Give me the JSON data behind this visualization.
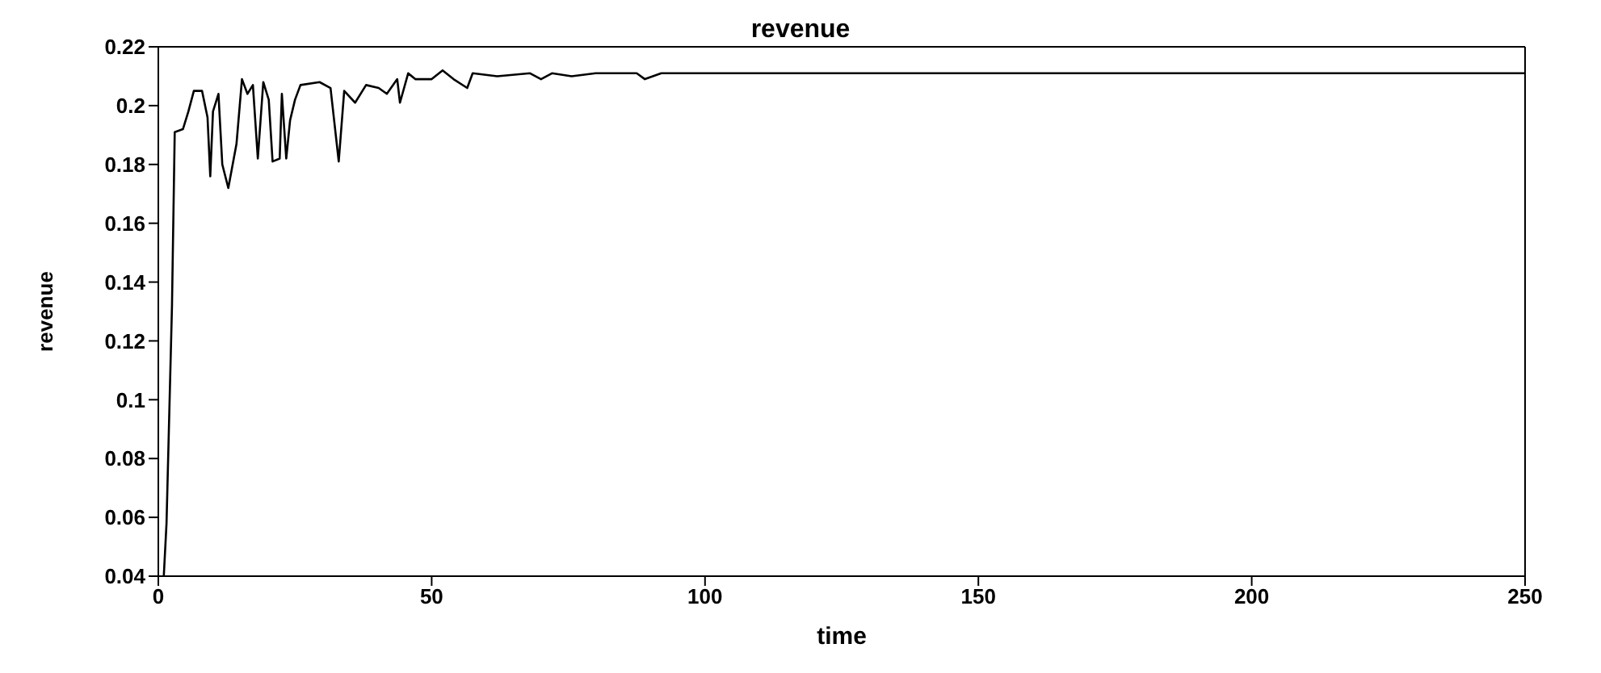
{
  "chart_data": {
    "type": "line",
    "title": "revenue",
    "xlabel": "time",
    "ylabel": "revenue",
    "x": [
      1,
      1.5,
      2.5,
      3,
      4.5,
      5.5,
      6.5,
      8,
      9,
      9.5,
      10,
      11,
      11.7,
      12.8,
      14.3,
      15.3,
      16.3,
      17.3,
      18.2,
      19.2,
      20.2,
      20.9,
      22.2,
      22.6,
      23.4,
      24.1,
      25,
      26,
      29.5,
      31.5,
      33,
      34,
      36,
      38,
      40.3,
      41.8,
      43.7,
      44.2,
      45.7,
      47,
      50,
      52,
      54,
      56.5,
      57.5,
      62,
      68,
      70,
      72,
      75.6,
      80,
      85,
      87.5,
      89,
      92,
      100,
      250
    ],
    "series": [
      {
        "color": "#000000",
        "values": [
          0.04,
          0.058,
          0.132,
          0.191,
          0.192,
          0.198,
          0.205,
          0.205,
          0.196,
          0.176,
          0.198,
          0.204,
          0.18,
          0.172,
          0.187,
          0.209,
          0.204,
          0.207,
          0.182,
          0.208,
          0.202,
          0.181,
          0.182,
          0.204,
          0.182,
          0.195,
          0.202,
          0.207,
          0.208,
          0.206,
          0.181,
          0.205,
          0.201,
          0.207,
          0.206,
          0.204,
          0.209,
          0.201,
          0.211,
          0.209,
          0.209,
          0.212,
          0.209,
          0.206,
          0.211,
          0.21,
          0.211,
          0.209,
          0.211,
          0.21,
          0.211,
          0.211,
          0.211,
          0.209,
          0.211,
          0.211,
          0.211
        ]
      }
    ],
    "xlim": [
      0,
      250
    ],
    "xticks": [
      0,
      50,
      100,
      150,
      200,
      250
    ],
    "ylim": [
      0.04,
      0.22
    ],
    "yticks": [
      0.04,
      0.06,
      0.08,
      0.1,
      0.12,
      0.14,
      0.16,
      0.18,
      0.2,
      0.22
    ],
    "grid": false,
    "legend": false,
    "marker": "none",
    "line_style": "solid"
  }
}
